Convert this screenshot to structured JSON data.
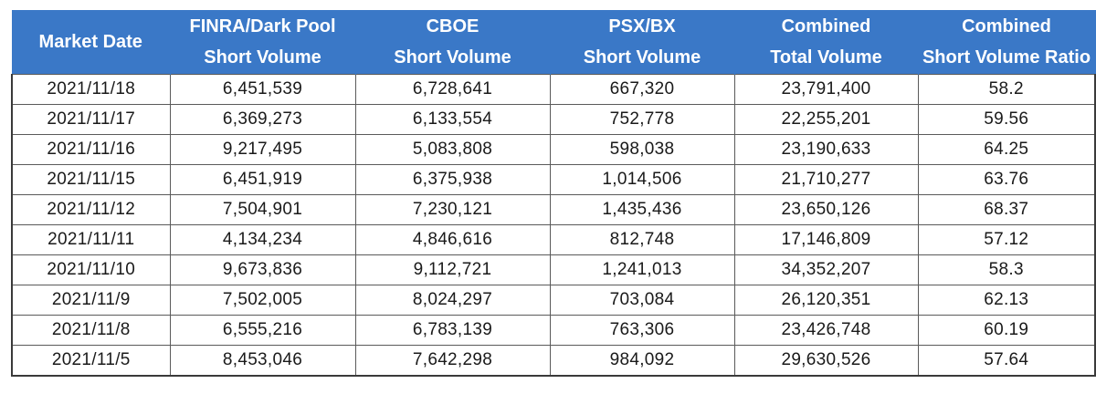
{
  "table": {
    "headers": [
      {
        "line1": "Market Date",
        "line2": ""
      },
      {
        "line1": "FINRA/Dark Pool",
        "line2": "Short Volume"
      },
      {
        "line1": "CBOE",
        "line2": "Short Volume"
      },
      {
        "line1": "PSX/BX",
        "line2": "Short Volume"
      },
      {
        "line1": "Combined",
        "line2": "Total Volume"
      },
      {
        "line1": "Combined",
        "line2": "Short Volume Ratio"
      }
    ],
    "rows": [
      [
        "2021/11/18",
        "6,451,539",
        "6,728,641",
        "667,320",
        "23,791,400",
        "58.2"
      ],
      [
        "2021/11/17",
        "6,369,273",
        "6,133,554",
        "752,778",
        "22,255,201",
        "59.56"
      ],
      [
        "2021/11/16",
        "9,217,495",
        "5,083,808",
        "598,038",
        "23,190,633",
        "64.25"
      ],
      [
        "2021/11/15",
        "6,451,919",
        "6,375,938",
        "1,014,506",
        "21,710,277",
        "63.76"
      ],
      [
        "2021/11/12",
        "7,504,901",
        "7,230,121",
        "1,435,436",
        "23,650,126",
        "68.37"
      ],
      [
        "2021/11/11",
        "4,134,234",
        "4,846,616",
        "812,748",
        "17,146,809",
        "57.12"
      ],
      [
        "2021/11/10",
        "9,673,836",
        "9,112,721",
        "1,241,013",
        "34,352,207",
        "58.3"
      ],
      [
        "2021/11/9",
        "7,502,005",
        "8,024,297",
        "703,084",
        "26,120,351",
        "62.13"
      ],
      [
        "2021/11/8",
        "6,555,216",
        "6,783,139",
        "763,306",
        "23,426,748",
        "60.19"
      ],
      [
        "2021/11/5",
        "8,453,046",
        "7,642,298",
        "984,092",
        "29,630,526",
        "57.64"
      ]
    ]
  },
  "colors": {
    "header_background": "#3a78c7",
    "header_text": "#ffffff",
    "cell_text": "#1a1a1a",
    "grid_line": "#5a5a5a"
  }
}
